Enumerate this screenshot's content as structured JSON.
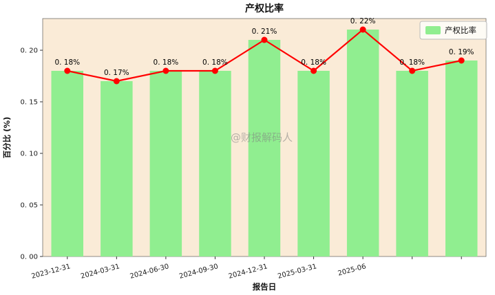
{
  "chart_data": {
    "type": "bar",
    "title": "产权比率",
    "xlabel": "报告日",
    "ylabel": "百分比 (%)",
    "categories": [
      "2023-12-31",
      "2024-03-31",
      "2024-06-30",
      "2024-09-30",
      "2024-12-31",
      "2025-03-31",
      "2025-06",
      "",
      ""
    ],
    "values": [
      0.18,
      0.17,
      0.18,
      0.18,
      0.21,
      0.18,
      0.22,
      0.18,
      0.19
    ],
    "value_labels": [
      "0. 18%",
      "0. 17%",
      "0. 18%",
      "0. 18%",
      "0. 21%",
      "0. 18%",
      "0. 22%",
      "0. 18%",
      "0. 19%"
    ],
    "series": [
      {
        "name": "产权比率",
        "type": "bar"
      },
      {
        "name": "产权比率",
        "type": "line"
      }
    ],
    "legend": {
      "label": "产权比率",
      "position": "upper right"
    },
    "yticks": [
      0.0,
      0.05,
      0.1,
      0.15,
      0.2
    ],
    "ytick_labels": [
      "0. 00",
      "0. 05",
      "0. 10",
      "0. 15",
      "0. 20"
    ],
    "ylim": [
      0,
      0.2307
    ],
    "grid": false,
    "colors": {
      "bar": "#90ee90",
      "line": "#ff0000",
      "marker": "#ff0000",
      "plot_bg": "#faebd7",
      "fig_bg": "#ffffff"
    },
    "watermark": "@财报解码人"
  }
}
